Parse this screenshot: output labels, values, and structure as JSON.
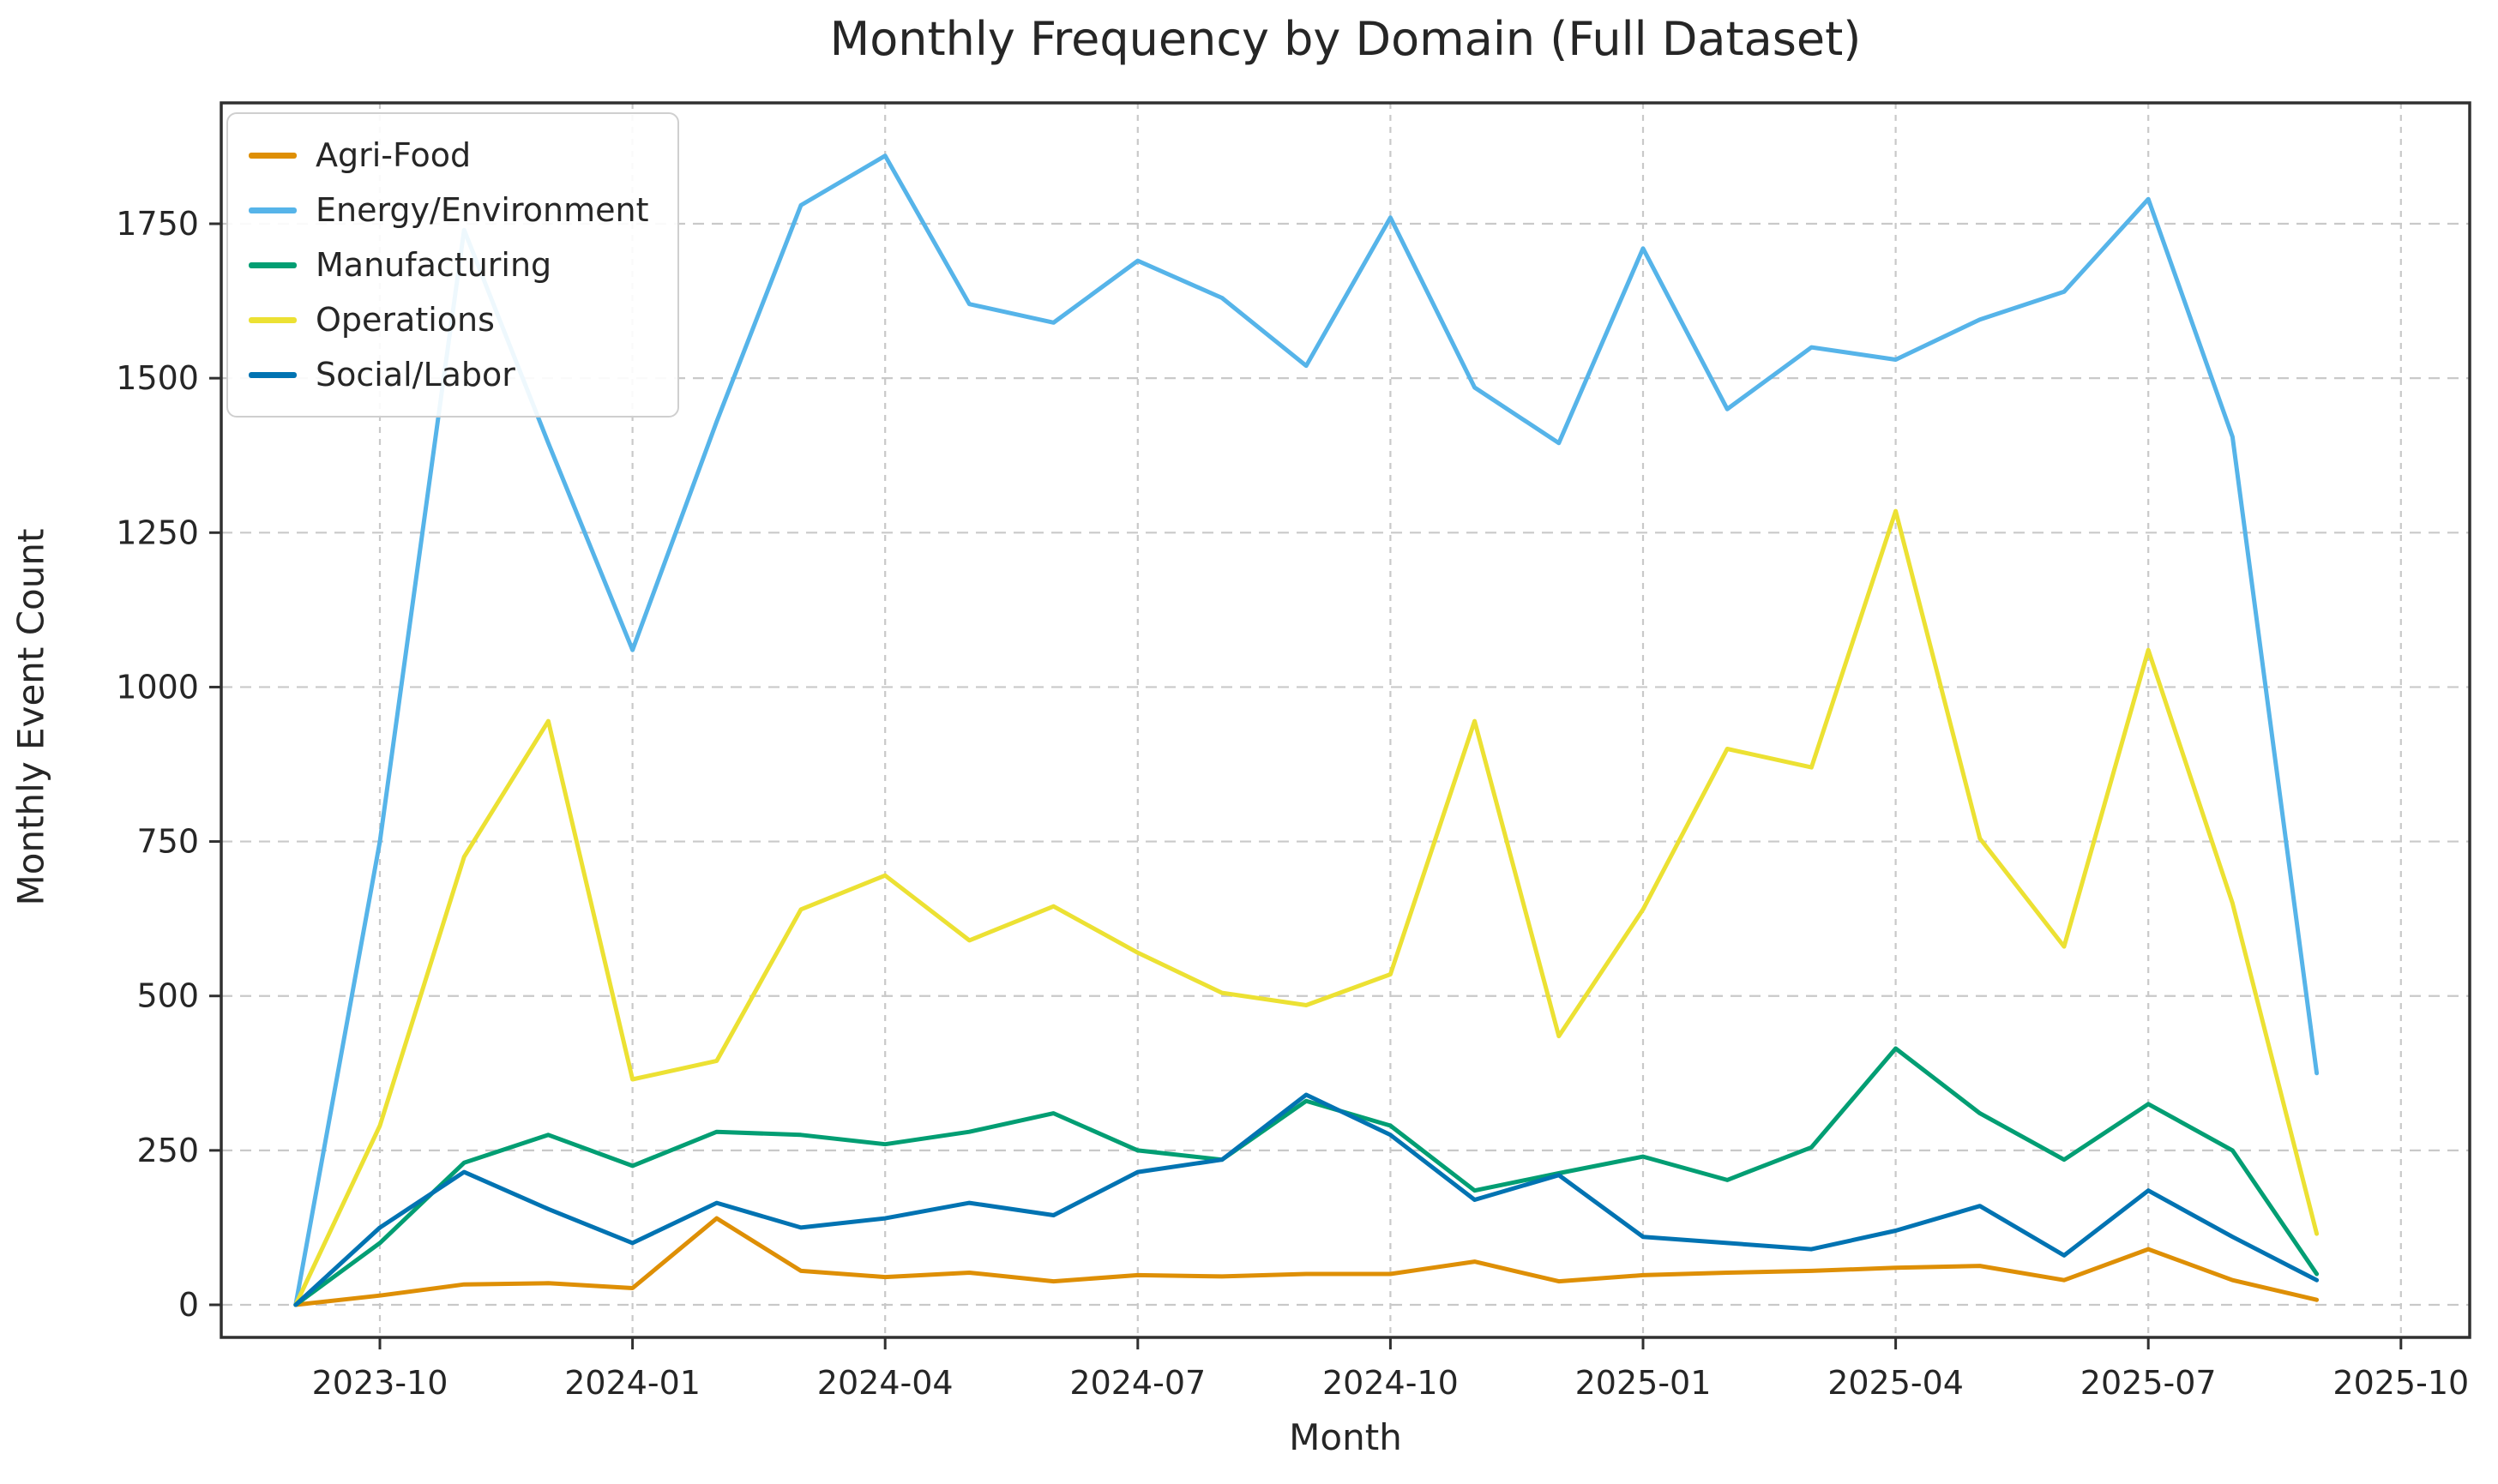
{
  "title": "Monthly Frequency by Domain (Full Dataset)",
  "x_axis": {
    "label": "Month",
    "ticks": [
      "2023-10",
      "2024-01",
      "2024-04",
      "2024-07",
      "2024-10",
      "2025-01",
      "2025-04",
      "2025-07",
      "2025-10"
    ]
  },
  "y_axis": {
    "label": "Monthly Event Count",
    "ticks": [
      "0",
      "250",
      "500",
      "750",
      "1000",
      "1250",
      "1500",
      "1750"
    ]
  },
  "legend": {
    "position": "upper left",
    "items": [
      {
        "label": "Agri-Food",
        "color": "#DE8F05"
      },
      {
        "label": "Energy/Environment",
        "color": "#56B4E9"
      },
      {
        "label": "Manufacturing",
        "color": "#029E73"
      },
      {
        "label": "Operations",
        "color": "#ECE133"
      },
      {
        "label": "Social/Labor",
        "color": "#0173B2"
      }
    ]
  },
  "colors": {
    "grid": "#C9C9C9",
    "spine": "#303030",
    "text": "#262626"
  },
  "chart_data": {
    "type": "line",
    "title": "Monthly Frequency by Domain (Full Dataset)",
    "xlabel": "Month",
    "ylabel": "Monthly Event Count",
    "grid": true,
    "legend_position": "upper left",
    "ylim": [
      -55,
      1950
    ],
    "yticks": [
      0,
      250,
      500,
      750,
      1000,
      1250,
      1500,
      1750
    ],
    "xticks": [
      "2023-10",
      "2024-01",
      "2024-04",
      "2024-07",
      "2024-10",
      "2025-01",
      "2025-04",
      "2025-07",
      "2025-10"
    ],
    "x": [
      "2023-09",
      "2023-10",
      "2023-11",
      "2023-12",
      "2024-01",
      "2024-02",
      "2024-03",
      "2024-04",
      "2024-05",
      "2024-06",
      "2024-07",
      "2024-08",
      "2024-09",
      "2024-10",
      "2024-11",
      "2024-12",
      "2025-01",
      "2025-02",
      "2025-03",
      "2025-04",
      "2025-05",
      "2025-06",
      "2025-07",
      "2025-08",
      "2025-09"
    ],
    "series": [
      {
        "name": "Agri-Food",
        "color": "#DE8F05",
        "values": [
          0,
          15,
          33,
          35,
          27,
          140,
          55,
          45,
          52,
          38,
          48,
          46,
          50,
          50,
          70,
          38,
          48,
          52,
          55,
          60,
          63,
          40,
          90,
          40,
          8
        ]
      },
      {
        "name": "Energy/Environment",
        "color": "#56B4E9",
        "values": [
          0,
          750,
          1740,
          1395,
          1060,
          1430,
          1780,
          1860,
          1620,
          1590,
          1690,
          1630,
          1520,
          1760,
          1485,
          1395,
          1710,
          1450,
          1550,
          1530,
          1595,
          1640,
          1790,
          1405,
          375
        ]
      },
      {
        "name": "Manufacturing",
        "color": "#029E73",
        "values": [
          0,
          100,
          230,
          275,
          225,
          280,
          275,
          260,
          280,
          310,
          250,
          235,
          330,
          290,
          185,
          213,
          240,
          202,
          255,
          415,
          310,
          235,
          325,
          250,
          50
        ]
      },
      {
        "name": "Operations",
        "color": "#ECE133",
        "values": [
          0,
          290,
          725,
          945,
          365,
          395,
          640,
          695,
          590,
          645,
          570,
          505,
          485,
          535,
          945,
          435,
          640,
          900,
          870,
          1285,
          755,
          580,
          1060,
          650,
          115
        ]
      },
      {
        "name": "Social/Labor",
        "color": "#0173B2",
        "values": [
          0,
          125,
          215,
          155,
          100,
          165,
          125,
          140,
          165,
          145,
          215,
          235,
          340,
          275,
          170,
          210,
          110,
          100,
          90,
          120,
          160,
          80,
          185,
          110,
          40
        ]
      }
    ]
  }
}
